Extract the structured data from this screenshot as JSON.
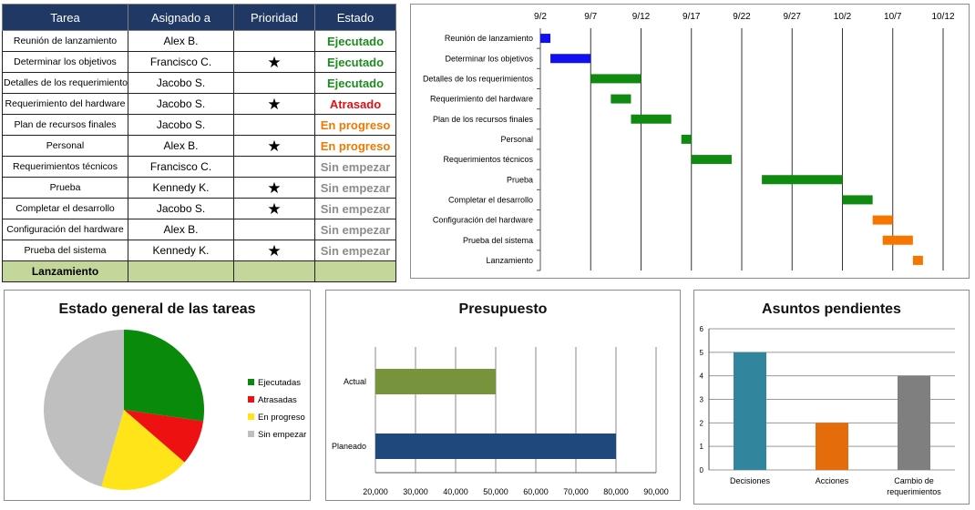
{
  "table": {
    "headers": [
      "Tarea",
      "Asignado a",
      "Prioridad",
      "Estado"
    ],
    "star_glyph": "★",
    "rows": [
      {
        "task": "Reunión de lanzamiento",
        "owner": "Alex B.",
        "priority": "",
        "status": "Ejecutado",
        "status_color": "#1e8b1e"
      },
      {
        "task": "Determinar los objetivos",
        "owner": "Francisco C.",
        "priority": "★",
        "status": "Ejecutado",
        "status_color": "#1e8b1e"
      },
      {
        "task": "Detalles de los requerimientos",
        "owner": "Jacobo S.",
        "priority": "",
        "status": "Ejecutado",
        "status_color": "#1e8b1e"
      },
      {
        "task": "Requerimiento del hardware",
        "owner": "Jacobo S.",
        "priority": "★",
        "status": "Atrasado",
        "status_color": "#e01010"
      },
      {
        "task": "Plan de recursos finales",
        "owner": "Jacobo S.",
        "priority": "",
        "status": "En progreso",
        "status_color": "#f07800"
      },
      {
        "task": "Personal",
        "owner": "Alex B.",
        "priority": "★",
        "status": "En progreso",
        "status_color": "#f07800"
      },
      {
        "task": "Requerimientos técnicos",
        "owner": "Francisco C.",
        "priority": "",
        "status": "Sin empezar",
        "status_color": "#8c8c8c"
      },
      {
        "task": "Prueba",
        "owner": "Kennedy K.",
        "priority": "★",
        "status": "Sin empezar",
        "status_color": "#8c8c8c"
      },
      {
        "task": "Completar el desarrollo",
        "owner": "Jacobo S.",
        "priority": "★",
        "status": "Sin empezar",
        "status_color": "#8c8c8c"
      },
      {
        "task": "Configuración del hardware",
        "owner": "Alex B.",
        "priority": "",
        "status": "Sin empezar",
        "status_color": "#8c8c8c"
      },
      {
        "task": "Prueba del sistema",
        "owner": "Kennedy K.",
        "priority": "★",
        "status": "Sin empezar",
        "status_color": "#8c8c8c"
      }
    ],
    "launch_row": "Lanzamiento"
  },
  "chart_data": [
    {
      "type": "bar",
      "subtype": "gantt",
      "title": "",
      "x_ticks": [
        "9/2",
        "9/7",
        "9/12",
        "9/17",
        "9/22",
        "9/27",
        "10/2",
        "10/7",
        "10/12"
      ],
      "x_tick_days": [
        0,
        5,
        10,
        15,
        20,
        25,
        30,
        35,
        40
      ],
      "x_unit": "days since 9/2",
      "grid": true,
      "categories": [
        "Reunión de lanzamiento",
        "Determinar los objetivos",
        "Detalles de los requerimientos",
        "Requerimiento del hardware",
        "Plan de los recursos finales",
        "Personal",
        "Requerimientos técnicos",
        "Prueba",
        "Completar el desarrollo",
        "Configuración del hardware",
        "Prueba del sistema",
        "Lanzamiento"
      ],
      "start": [
        0,
        1,
        5,
        7,
        9,
        14,
        15,
        22,
        30,
        33,
        34,
        37
      ],
      "duration": [
        1,
        4,
        5,
        2,
        4,
        1,
        4,
        8,
        3,
        2,
        3,
        1
      ],
      "colors": [
        "#1010f0",
        "#1010f0",
        "#118a11",
        "#118a11",
        "#118a11",
        "#118a11",
        "#118a11",
        "#118a11",
        "#118a11",
        "#f77600",
        "#f77600",
        "#f77600"
      ]
    },
    {
      "type": "pie",
      "title": "Estado general de las tareas",
      "categories": [
        "Ejecutadas",
        "Atrasadas",
        "En progreso",
        "Sin empezar"
      ],
      "values": [
        3,
        1,
        2,
        5
      ],
      "colors": [
        "#0a8a0a",
        "#ee1111",
        "#ffe419",
        "#bfbfbf"
      ],
      "legend": "right"
    },
    {
      "type": "bar",
      "orientation": "horizontal",
      "title": "Presupuesto",
      "categories": [
        "Actual",
        "Planeado"
      ],
      "values": [
        50000,
        80000
      ],
      "colors": [
        "#77933c",
        "#1f497d"
      ],
      "xlim": [
        20000,
        90000
      ],
      "x_ticks": [
        "20,000",
        "30,000",
        "40,000",
        "50,000",
        "60,000",
        "70,000",
        "80,000",
        "90,000"
      ],
      "grid": true
    },
    {
      "type": "bar",
      "title": "Asuntos pendientes",
      "categories": [
        "Decisiones",
        "Acciones",
        "Cambio de requerimientos"
      ],
      "values": [
        5,
        2,
        4
      ],
      "colors": [
        "#31859c",
        "#e46c0a",
        "#7f7f7f"
      ],
      "ylim": [
        0,
        6
      ],
      "y_ticks": [
        "0",
        "1",
        "2",
        "3",
        "4",
        "5",
        "6"
      ],
      "grid": true
    }
  ]
}
